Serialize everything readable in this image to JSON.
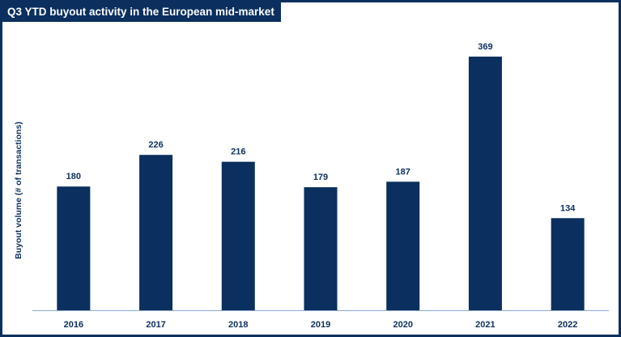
{
  "chart_data": {
    "type": "bar",
    "title": "Q3 YTD buyout activity in the European mid-market",
    "xlabel": "",
    "ylabel": "Buyout volume (# of transactions)",
    "categories": [
      "2016",
      "2017",
      "2018",
      "2019",
      "2020",
      "2021",
      "2022"
    ],
    "values": [
      180,
      226,
      216,
      179,
      187,
      369,
      134
    ],
    "ylim": [
      0,
      370
    ],
    "grid": false,
    "bar_color": "#0b2f5e",
    "axis_color": "#8da9d4"
  }
}
